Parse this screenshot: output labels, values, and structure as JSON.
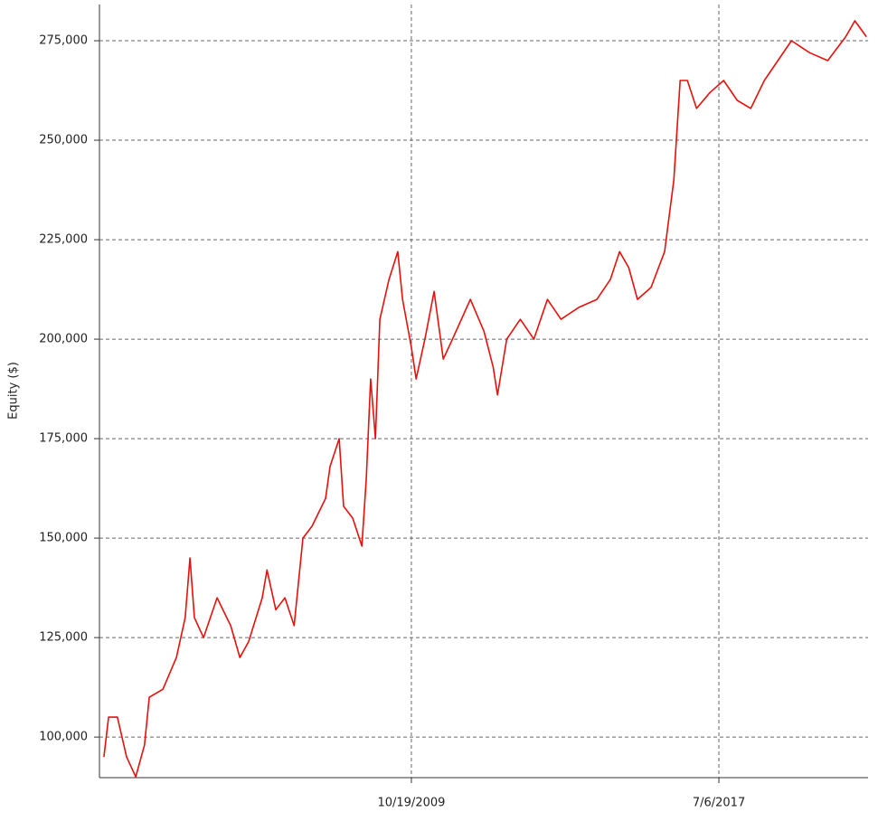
{
  "chart_data": {
    "type": "line",
    "y_label": "Equity ($)",
    "x": [
      2002.09,
      2002.21,
      2002.43,
      2002.66,
      2002.89,
      2003.11,
      2003.23,
      2003.57,
      2003.91,
      2004.13,
      2004.25,
      2004.36,
      2004.59,
      2004.93,
      2005.27,
      2005.5,
      2005.72,
      2006.06,
      2006.18,
      2006.4,
      2006.63,
      2006.86,
      2007.08,
      2007.31,
      2007.65,
      2007.76,
      2007.99,
      2008.1,
      2008.33,
      2008.56,
      2008.67,
      2008.78,
      2008.9,
      2009.01,
      2009.24,
      2009.46,
      2009.58,
      2009.8,
      2009.92,
      2010.14,
      2010.37,
      2010.6,
      2010.83,
      2011.28,
      2011.62,
      2011.85,
      2011.96,
      2012.19,
      2012.53,
      2012.87,
      2013.21,
      2013.55,
      2014.0,
      2014.45,
      2014.79,
      2015.02,
      2015.25,
      2015.47,
      2015.81,
      2016.15,
      2016.38,
      2016.54,
      2016.72,
      2016.95,
      2017.29,
      2017.63,
      2017.97,
      2018.31,
      2018.65,
      2018.99,
      2019.33,
      2019.78,
      2020.24,
      2020.69,
      2020.92,
      2021.21
    ],
    "series": [
      {
        "color": "#e8100b",
        "values": [
          95000,
          105000,
          105000,
          95000,
          90000,
          98000,
          110000,
          112000,
          120000,
          130000,
          145000,
          130000,
          125000,
          135000,
          128000,
          120000,
          124000,
          135000,
          142000,
          132000,
          135000,
          128000,
          150000,
          153000,
          160000,
          168000,
          175000,
          158000,
          155000,
          148000,
          165000,
          190000,
          175000,
          205000,
          215000,
          222000,
          210000,
          198000,
          190000,
          200000,
          212000,
          195000,
          200000,
          210000,
          202000,
          193000,
          186000,
          200000,
          205000,
          200000,
          210000,
          205000,
          208000,
          210000,
          215000,
          222000,
          218000,
          210000,
          213000,
          222000,
          240000,
          265000,
          265000,
          258000,
          262000,
          265000,
          260000,
          258000,
          265000,
          270000,
          275000,
          272000,
          270000,
          276000,
          280000,
          276000
        ]
      }
    ],
    "xlim": [
      2001.98,
      2021.25
    ],
    "xticks": [
      {
        "value": 2009.8,
        "label": "10/19/2009"
      },
      {
        "value": 2017.51,
        "label": "7/6/2017"
      }
    ],
    "ylim": [
      89800,
      284100
    ],
    "yticks": [
      {
        "value": 100000,
        "label": "100,000"
      },
      {
        "value": 125000,
        "label": "125,000"
      },
      {
        "value": 150000,
        "label": "150,000"
      },
      {
        "value": 175000,
        "label": "175,000"
      },
      {
        "value": 200000,
        "label": "200,000"
      },
      {
        "value": 225000,
        "label": "225,000"
      },
      {
        "value": 250000,
        "label": "250,000"
      },
      {
        "value": 275000,
        "label": "275,000"
      }
    ],
    "grid": true
  }
}
